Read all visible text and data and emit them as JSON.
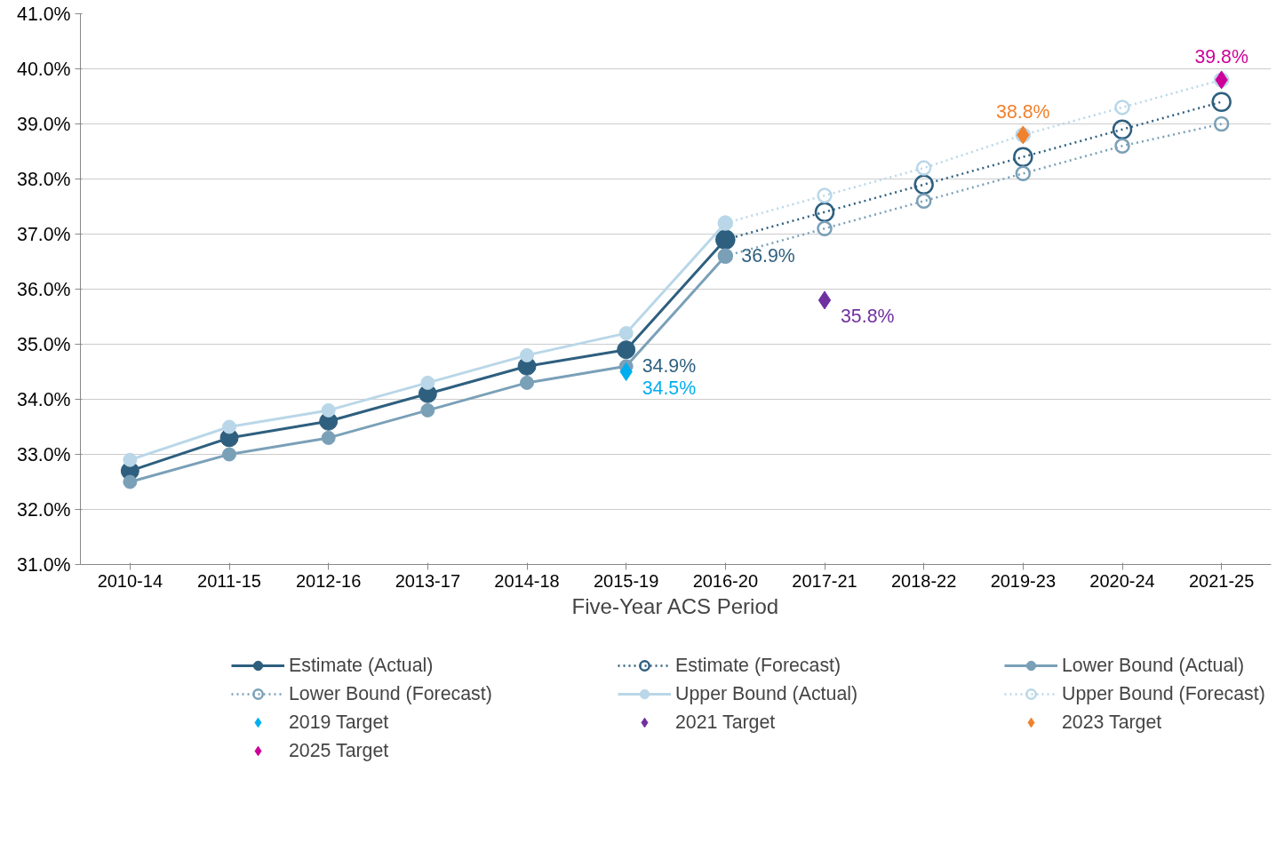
{
  "chart_data": {
    "type": "line",
    "xlabel": "Five-Year ACS Period",
    "categories": [
      "2010-14",
      "2011-15",
      "2012-16",
      "2013-17",
      "2014-18",
      "2015-19",
      "2016-20",
      "2017-21",
      "2018-22",
      "2019-23",
      "2020-24",
      "2021-25"
    ],
    "ylim": [
      31,
      41
    ],
    "yticks": [
      {
        "value": 31,
        "label": "31.0%"
      },
      {
        "value": 32,
        "label": "32.0%"
      },
      {
        "value": 33,
        "label": "33.0%"
      },
      {
        "value": 34,
        "label": "34.0%"
      },
      {
        "value": 35,
        "label": "35.0%"
      },
      {
        "value": 36,
        "label": "36.0%"
      },
      {
        "value": 37,
        "label": "37.0%"
      },
      {
        "value": 38,
        "label": "38.0%"
      },
      {
        "value": 39,
        "label": "39.0%"
      },
      {
        "value": 40,
        "label": "40.0%"
      },
      {
        "value": 41,
        "label": "41.0%"
      }
    ],
    "grid": "y",
    "legend": "bottom",
    "marker": "circle",
    "series": [
      {
        "name": "Estimate (Actual)",
        "color": "#2e5f7f",
        "line_style": "solid",
        "values": [
          32.7,
          33.3,
          33.6,
          34.1,
          34.6,
          34.9,
          36.9,
          null,
          null,
          null,
          null,
          null
        ],
        "value_labels": [
          null,
          null,
          null,
          null,
          null,
          "34.9%",
          "36.9%",
          null,
          null,
          null,
          null,
          null
        ]
      },
      {
        "name": "Estimate (Forecast)",
        "color": "#2e5f7f",
        "line_style": "dotted",
        "values": [
          null,
          null,
          null,
          null,
          null,
          null,
          36.9,
          37.4,
          37.9,
          38.4,
          38.9,
          39.4
        ]
      },
      {
        "name": "Lower Bound (Actual)",
        "color": "#7aa0b8",
        "line_style": "solid",
        "values": [
          32.5,
          33.0,
          33.3,
          33.8,
          34.3,
          34.6,
          36.6,
          null,
          null,
          null,
          null,
          null
        ]
      },
      {
        "name": "Lower Bound (Forecast)",
        "color": "#7aa0b8",
        "line_style": "dotted",
        "values": [
          null,
          null,
          null,
          null,
          null,
          null,
          36.6,
          37.1,
          37.6,
          38.1,
          38.6,
          39.0
        ]
      },
      {
        "name": "Upper Bound (Actual)",
        "color": "#b9d7e8",
        "line_style": "solid",
        "values": [
          32.9,
          33.5,
          33.8,
          34.3,
          34.8,
          35.2,
          37.2,
          null,
          null,
          null,
          null,
          null
        ]
      },
      {
        "name": "Upper Bound (Forecast)",
        "color": "#b9d7e8",
        "line_style": "dotted",
        "values": [
          null,
          null,
          null,
          null,
          null,
          null,
          37.2,
          37.7,
          38.2,
          38.8,
          39.3,
          39.8
        ]
      },
      {
        "name": "2019 Target",
        "type": "scatter",
        "marker": "diamond",
        "color": "#00aeef",
        "x": [
          "2015-19"
        ],
        "values": [
          34.5
        ],
        "value_labels": [
          "34.5%"
        ]
      },
      {
        "name": "2021 Target",
        "type": "scatter",
        "marker": "diamond",
        "color": "#7030a0",
        "x": [
          "2017-21"
        ],
        "values": [
          35.8
        ],
        "value_labels": [
          "35.8%"
        ]
      },
      {
        "name": "2023 Target",
        "type": "scatter",
        "marker": "diamond",
        "color": "#f0812d",
        "x": [
          "2019-23"
        ],
        "values": [
          38.8
        ],
        "value_labels": [
          "38.8%"
        ]
      },
      {
        "name": "2025 Target",
        "type": "scatter",
        "marker": "diamond",
        "color": "#cc0099",
        "x": [
          "2021-25"
        ],
        "values": [
          39.8
        ],
        "value_labels": [
          "39.8%"
        ]
      }
    ]
  }
}
